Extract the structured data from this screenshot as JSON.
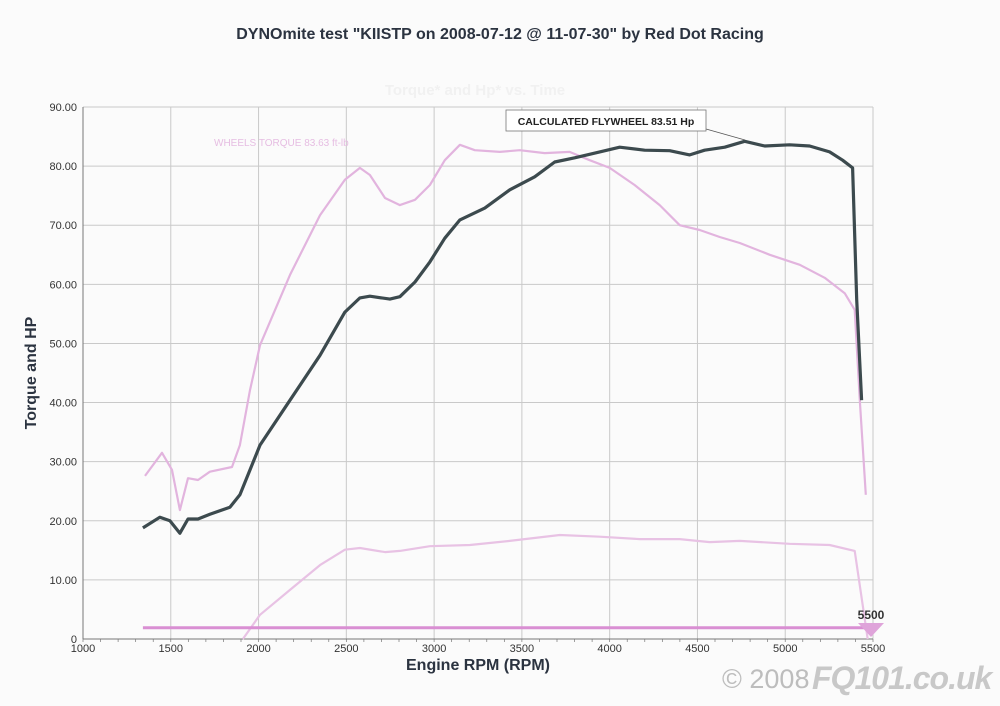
{
  "title": "DYNOmite test \"KIISTP on 2008-07-12 @ 11-07-30\" by Red Dot Racing",
  "watermark": {
    "copyright": "© 2008",
    "brand": "FQ101.co.uk"
  },
  "chart_data": {
    "type": "line",
    "title": "DYNOmite test \"KIISTP on 2008-07-12 @ 11-07-30\" by Red Dot Racing",
    "subtitle": "Torque* and Hp* vs. Time",
    "xlabel": "Engine RPM (RPM)",
    "ylabel": "Torque and HP",
    "xlim": [
      1000,
      5500
    ],
    "ylim": [
      0,
      90
    ],
    "grid": true,
    "x_ticks": [
      "1000",
      "1500",
      "2000",
      "2500",
      "3000",
      "3500",
      "4000",
      "4500",
      "5000",
      "5500"
    ],
    "y_ticks": [
      "0",
      "10.00",
      "20.00",
      "30.00",
      "40.00",
      "50.00",
      "60.00",
      "70.00",
      "80.00",
      "90.00"
    ],
    "annotations": [
      {
        "text": "CALCULATED FLYWHEEL 83.51 Hp",
        "series": "flywheel_hp",
        "x": 4769,
        "y": 84.2
      },
      {
        "text": "WHEELS TORQUE 83.63 ft-lb",
        "series": "wheels_torque"
      },
      {
        "text": "5500",
        "series": "rpm_marker",
        "x": 5500,
        "y": 1.9
      }
    ],
    "series": [
      {
        "key": "wheels_torque",
        "color": "#e2b4de",
        "x": [
          1353,
          1450,
          1507,
          1552,
          1598,
          1655,
          1723,
          1849,
          1894,
          1951,
          2008,
          2179,
          2350,
          2492,
          2577,
          2634,
          2720,
          2805,
          2891,
          2976,
          3061,
          3147,
          3232,
          3374,
          3488,
          3630,
          3772,
          3886,
          4000,
          4142,
          4285,
          4399,
          4513,
          4627,
          4741,
          4912,
          5083,
          5225,
          5339,
          5396,
          5425,
          5459
        ],
        "y": [
          27.6,
          31.5,
          28.6,
          21.8,
          27.2,
          26.9,
          28.3,
          29.1,
          32.8,
          42.1,
          49.7,
          61.6,
          71.7,
          77.7,
          79.7,
          78.5,
          74.6,
          73.4,
          74.3,
          76.8,
          81.0,
          83.6,
          82.7,
          82.4,
          82.7,
          82.2,
          82.4,
          81.0,
          79.7,
          76.8,
          73.4,
          70.0,
          69.2,
          68.0,
          67.0,
          65.0,
          63.3,
          61.1,
          58.5,
          55.7,
          40.4,
          24.4
        ]
      },
      {
        "key": "flywheel_hp",
        "color": "#3c4a4e",
        "x": [
          1341,
          1438,
          1495,
          1552,
          1598,
          1655,
          1723,
          1837,
          1894,
          1951,
          2008,
          2179,
          2350,
          2492,
          2577,
          2634,
          2748,
          2805,
          2891,
          2976,
          3061,
          3147,
          3289,
          3431,
          3573,
          3687,
          3801,
          3943,
          4057,
          4199,
          4342,
          4456,
          4541,
          4655,
          4769,
          4883,
          5025,
          5139,
          5253,
          5327,
          5384,
          5407,
          5435
        ],
        "y": [
          18.8,
          20.6,
          20.0,
          17.9,
          20.3,
          20.3,
          21.1,
          22.3,
          24.4,
          28.6,
          32.8,
          40.4,
          48.0,
          55.3,
          57.7,
          58.0,
          57.5,
          57.9,
          60.4,
          63.8,
          67.8,
          70.9,
          72.9,
          76.0,
          78.2,
          80.7,
          81.4,
          82.4,
          83.2,
          82.7,
          82.6,
          81.9,
          82.7,
          83.2,
          84.2,
          83.4,
          83.6,
          83.4,
          82.4,
          81.0,
          79.7,
          57.4,
          40.4
        ]
      },
      {
        "key": "wheels_hp",
        "color": "#e8c2e4",
        "x": [
          1911,
          2008,
          2179,
          2350,
          2492,
          2577,
          2720,
          2805,
          2976,
          3204,
          3431,
          3716,
          3943,
          4171,
          4399,
          4570,
          4741,
          5025,
          5253,
          5396,
          5470
        ],
        "y": [
          0,
          4.1,
          8.3,
          12.5,
          15.1,
          15.4,
          14.7,
          14.9,
          15.7,
          15.9,
          16.6,
          17.6,
          17.3,
          16.9,
          16.9,
          16.4,
          16.6,
          16.1,
          15.9,
          14.9,
          0
        ]
      },
      {
        "key": "rpm_marker",
        "color": "#d98fd3",
        "x": [
          1341,
          5500
        ],
        "y": [
          1.9,
          1.9
        ]
      }
    ]
  }
}
